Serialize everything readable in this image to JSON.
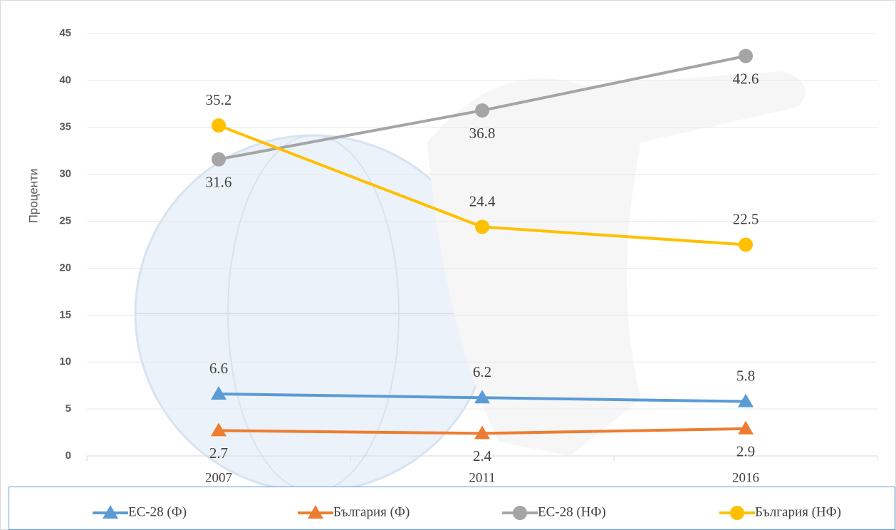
{
  "chart_data": {
    "type": "line",
    "y_label": "Проценти",
    "categories": [
      "2007",
      "2011",
      "2016"
    ],
    "series": [
      {
        "name": "ЕС-28 (Ф)",
        "color": "#5b9bd5",
        "marker": "triangle",
        "values": [
          6.6,
          6.2,
          5.8
        ]
      },
      {
        "name": "България (Ф)",
        "color": "#ed7d31",
        "marker": "triangle",
        "values": [
          2.7,
          2.4,
          2.9
        ]
      },
      {
        "name": "ЕС-28 (НФ)",
        "color": "#a5a5a5",
        "marker": "circle",
        "values": [
          31.6,
          36.8,
          42.6
        ]
      },
      {
        "name": "България (НФ)",
        "color": "#ffc000",
        "marker": "circle",
        "values": [
          35.2,
          24.4,
          22.5
        ]
      }
    ],
    "ylim": [
      0,
      45
    ],
    "yticks": [
      0,
      5,
      10,
      15,
      20,
      25,
      30,
      35,
      40,
      45
    ],
    "grid": true,
    "legend": "bottom"
  }
}
